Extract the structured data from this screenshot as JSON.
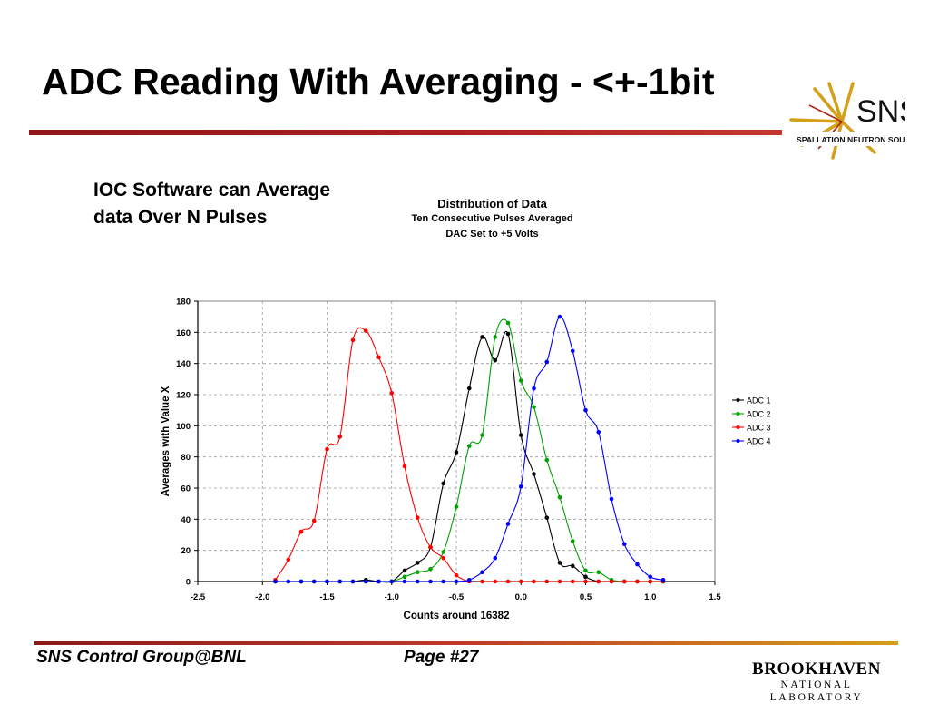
{
  "slide": {
    "title": "ADC Reading With Averaging - <+-1bit",
    "bullet": "IOC Software can Average data Over N Pulses",
    "footer_left": "SNS Control Group@BNL",
    "footer_page": "Page #27"
  },
  "logos": {
    "sns_word": "SNS",
    "sns_tagline": "SPALLATION NEUTRON SOURCE",
    "bnl_word": "BROOKHAVEN",
    "bnl_sub": "NATIONAL LABORATORY"
  },
  "colors": {
    "accent": "#a31f1f",
    "ADC 1": "#000000",
    "ADC 2": "#00a000",
    "ADC 3": "#ff0000",
    "ADC 4": "#0000ff"
  },
  "chart_data": {
    "type": "line",
    "title": "Distribution of Data",
    "subtitle": [
      "Ten Consecutive Pulses Averaged",
      "DAC Set to +5 Volts"
    ],
    "xlabel": "Counts around 16382",
    "ylabel": "Averages with Value X",
    "xlim": [
      -2.5,
      1.5
    ],
    "ylim": [
      0,
      180
    ],
    "xticks": [
      "-2.5",
      "-2.0",
      "-1.5",
      "-1.0",
      "-0.5",
      "0.0",
      "0.5",
      "1.0",
      "1.5"
    ],
    "yticks": [
      "0",
      "20",
      "40",
      "60",
      "80",
      "100",
      "120",
      "140",
      "160",
      "180"
    ],
    "grid": true,
    "legend_position": "right",
    "series": [
      {
        "name": "ADC 1",
        "x": [
          -1.9,
          -1.8,
          -1.7,
          -1.6,
          -1.5,
          -1.4,
          -1.3,
          -1.2,
          -1.1,
          -1.0,
          -0.9,
          -0.8,
          -0.7,
          -0.6,
          -0.5,
          -0.4,
          -0.3,
          -0.2,
          -0.1,
          0.0,
          0.1,
          0.2,
          0.3,
          0.4,
          0.5,
          0.6,
          0.7,
          0.8,
          0.9,
          1.0,
          1.1
        ],
        "y": [
          0,
          0,
          0,
          0,
          0,
          0,
          0,
          1,
          0,
          0,
          7,
          12,
          22,
          63,
          83,
          124,
          157,
          142,
          159,
          94,
          69,
          41,
          12,
          10,
          3,
          0,
          0,
          0,
          0,
          0,
          0
        ]
      },
      {
        "name": "ADC 2",
        "x": [
          -1.9,
          -1.8,
          -1.7,
          -1.6,
          -1.5,
          -1.4,
          -1.3,
          -1.2,
          -1.1,
          -1.0,
          -0.9,
          -0.8,
          -0.7,
          -0.6,
          -0.5,
          -0.4,
          -0.3,
          -0.2,
          -0.1,
          0.0,
          0.1,
          0.2,
          0.3,
          0.4,
          0.5,
          0.6,
          0.7,
          0.8,
          0.9,
          1.0,
          1.1
        ],
        "y": [
          0,
          0,
          0,
          0,
          0,
          0,
          0,
          0,
          0,
          0,
          3,
          6,
          8,
          19,
          48,
          87,
          94,
          157,
          166,
          129,
          112,
          78,
          54,
          26,
          7,
          6,
          1,
          0,
          0,
          0,
          0
        ]
      },
      {
        "name": "ADC 3",
        "x": [
          -1.9,
          -1.8,
          -1.7,
          -1.6,
          -1.5,
          -1.4,
          -1.3,
          -1.2,
          -1.1,
          -1.0,
          -0.9,
          -0.8,
          -0.7,
          -0.6,
          -0.5,
          -0.4,
          -0.3,
          -0.2,
          -0.1,
          0.0,
          0.1,
          0.2,
          0.3,
          0.4,
          0.5,
          0.6,
          0.7,
          0.8,
          0.9,
          1.0,
          1.1
        ],
        "y": [
          1,
          14,
          32,
          39,
          85,
          93,
          155,
          161,
          144,
          121,
          74,
          41,
          22,
          15,
          4,
          0,
          0,
          0,
          0,
          0,
          0,
          0,
          0,
          0,
          0,
          0,
          0,
          0,
          0,
          0,
          0
        ]
      },
      {
        "name": "ADC 4",
        "x": [
          -1.9,
          -1.8,
          -1.7,
          -1.6,
          -1.5,
          -1.4,
          -1.3,
          -1.2,
          -1.1,
          -1.0,
          -0.9,
          -0.8,
          -0.7,
          -0.6,
          -0.5,
          -0.4,
          -0.3,
          -0.2,
          -0.1,
          0.0,
          0.1,
          0.2,
          0.3,
          0.4,
          0.5,
          0.6,
          0.7,
          0.8,
          0.9,
          1.0,
          1.1
        ],
        "y": [
          0,
          0,
          0,
          0,
          0,
          0,
          0,
          0,
          0,
          0,
          0,
          0,
          0,
          0,
          0,
          1,
          6,
          15,
          37,
          61,
          124,
          141,
          170,
          148,
          110,
          96,
          53,
          24,
          11,
          3,
          1
        ]
      }
    ]
  }
}
